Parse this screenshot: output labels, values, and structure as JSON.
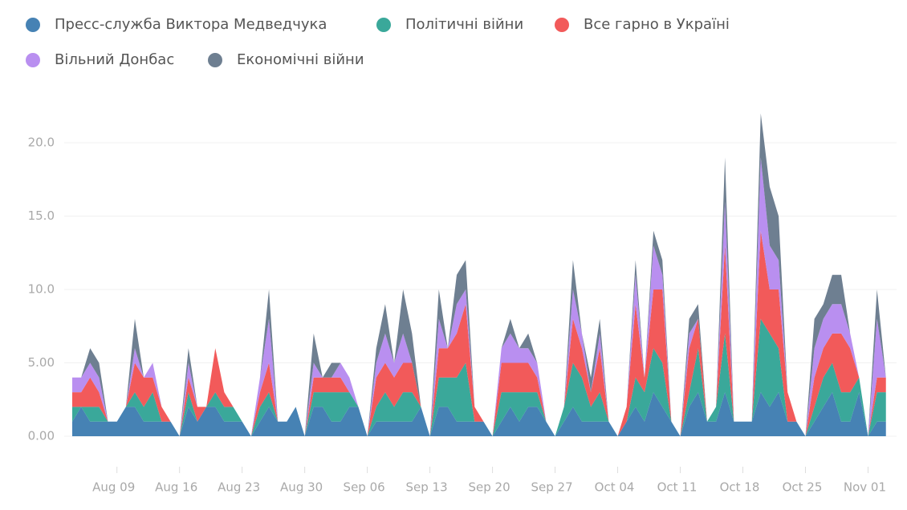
{
  "chart_data": {
    "type": "stacked-area",
    "categories": [
      null,
      null,
      null,
      null,
      null,
      "Aug 09",
      null,
      null,
      null,
      null,
      null,
      null,
      "Aug 16",
      null,
      null,
      null,
      null,
      null,
      null,
      "Aug 23",
      null,
      null,
      null,
      null,
      null,
      null,
      "Aug 30",
      null,
      null,
      null,
      null,
      null,
      null,
      "Sep 06",
      null,
      null,
      null,
      null,
      null,
      null,
      "Sep 13",
      null,
      null,
      null,
      null,
      null,
      null,
      "Sep 20",
      null,
      null,
      null,
      null,
      null,
      null,
      "Sep 27",
      null,
      null,
      null,
      null,
      null,
      null,
      "Oct 04",
      null,
      null,
      null,
      null,
      null,
      null,
      "Oct 11",
      null,
      null,
      null,
      null,
      null,
      null,
      "Oct 18",
      null,
      null,
      null,
      null,
      null,
      null,
      "Oct 25",
      null,
      null,
      null,
      null,
      null,
      null,
      "Nov 01",
      null,
      null
    ],
    "series": [
      {
        "name": "Пресс-служба Виктора Медведчука",
        "color": "#4682b4",
        "values": [
          1,
          2,
          1,
          1,
          1,
          1,
          2,
          2,
          1,
          1,
          1,
          1,
          0,
          2,
          1,
          2,
          2,
          1,
          1,
          1,
          0,
          1,
          2,
          1,
          1,
          2,
          0,
          2,
          2,
          1,
          1,
          2,
          2,
          0,
          1,
          1,
          1,
          1,
          1,
          2,
          0,
          2,
          2,
          1,
          1,
          1,
          1,
          0,
          1,
          2,
          1,
          2,
          2,
          1,
          0,
          1,
          2,
          1,
          1,
          1,
          1,
          0,
          1,
          2,
          1,
          3,
          2,
          1,
          0,
          2,
          3,
          1,
          1,
          3,
          1,
          1,
          1,
          3,
          2,
          3,
          1,
          1,
          0,
          1,
          2,
          3,
          1,
          1,
          3,
          0,
          1,
          1
        ]
      },
      {
        "name": "Політичні війни",
        "color": "#3aa89a",
        "values": [
          1,
          0,
          1,
          1,
          0,
          0,
          0,
          1,
          1,
          2,
          0,
          0,
          0,
          1,
          0,
          0,
          1,
          1,
          1,
          0,
          0,
          1,
          1,
          0,
          0,
          0,
          0,
          1,
          1,
          2,
          2,
          1,
          0,
          0,
          1,
          2,
          1,
          2,
          2,
          0,
          0,
          2,
          2,
          3,
          4,
          0,
          0,
          0,
          2,
          1,
          2,
          1,
          1,
          0,
          0,
          1,
          3,
          3,
          1,
          2,
          0,
          0,
          0,
          2,
          2,
          3,
          3,
          0,
          0,
          1,
          3,
          0,
          1,
          4,
          0,
          0,
          0,
          5,
          5,
          3,
          0,
          0,
          0,
          1,
          2,
          2,
          2,
          2,
          1,
          0,
          2,
          2
        ]
      },
      {
        "name": "Все гарно в Україні",
        "color": "#f25a5a",
        "values": [
          1,
          1,
          2,
          1,
          0,
          0,
          0,
          2,
          2,
          1,
          1,
          0,
          0,
          1,
          1,
          0,
          3,
          1,
          0,
          0,
          0,
          1,
          2,
          0,
          0,
          0,
          0,
          1,
          1,
          1,
          1,
          0,
          0,
          0,
          2,
          2,
          2,
          2,
          2,
          0,
          0,
          2,
          2,
          3,
          4,
          1,
          0,
          0,
          2,
          2,
          2,
          2,
          1,
          0,
          0,
          0,
          3,
          2,
          1,
          3,
          0,
          0,
          1,
          5,
          1,
          4,
          5,
          0,
          0,
          3,
          2,
          0,
          0,
          6,
          0,
          0,
          0,
          6,
          3,
          4,
          2,
          0,
          0,
          2,
          2,
          2,
          4,
          3,
          0,
          0,
          1,
          1
        ]
      },
      {
        "name": "Вільний Донбас",
        "color": "#b98ff0",
        "values": [
          1,
          1,
          1,
          1,
          0,
          0,
          0,
          1,
          0,
          1,
          0,
          0,
          0,
          1,
          0,
          0,
          0,
          0,
          0,
          0,
          0,
          1,
          3,
          0,
          0,
          0,
          0,
          1,
          0,
          0,
          1,
          1,
          0,
          0,
          1,
          2,
          1,
          2,
          0,
          0,
          0,
          2,
          0,
          2,
          1,
          0,
          0,
          0,
          1,
          2,
          1,
          1,
          1,
          0,
          0,
          0,
          2,
          1,
          0,
          1,
          0,
          0,
          0,
          2,
          0,
          3,
          1,
          0,
          0,
          1,
          0,
          0,
          0,
          3,
          0,
          0,
          0,
          5,
          3,
          2,
          0,
          0,
          0,
          2,
          2,
          2,
          2,
          1,
          0,
          0,
          4,
          0
        ]
      },
      {
        "name": "Економічні війни",
        "color": "#6e7f91",
        "values": [
          0,
          0,
          1,
          1,
          0,
          0,
          0,
          2,
          0,
          0,
          0,
          0,
          0,
          1,
          0,
          0,
          0,
          0,
          0,
          0,
          0,
          0,
          2,
          0,
          0,
          0,
          0,
          2,
          0,
          1,
          0,
          0,
          0,
          0,
          1,
          2,
          0,
          3,
          2,
          0,
          0,
          2,
          0,
          2,
          2,
          0,
          0,
          0,
          0,
          1,
          0,
          1,
          0,
          0,
          0,
          0,
          2,
          0,
          1,
          1,
          0,
          0,
          0,
          1,
          0,
          1,
          1,
          0,
          0,
          1,
          1,
          0,
          0,
          3,
          0,
          0,
          0,
          3,
          4,
          3,
          0,
          0,
          0,
          2,
          1,
          2,
          2,
          0,
          0,
          0,
          2,
          0
        ]
      }
    ],
    "ylim": [
      0,
      22
    ],
    "yticks": [
      {
        "value": 0,
        "label": "0.00"
      },
      {
        "value": 5,
        "label": "5.00"
      },
      {
        "value": 10,
        "label": "10.0"
      },
      {
        "value": 15,
        "label": "15.0"
      },
      {
        "value": 20,
        "label": "20.0"
      }
    ],
    "grid": true
  }
}
